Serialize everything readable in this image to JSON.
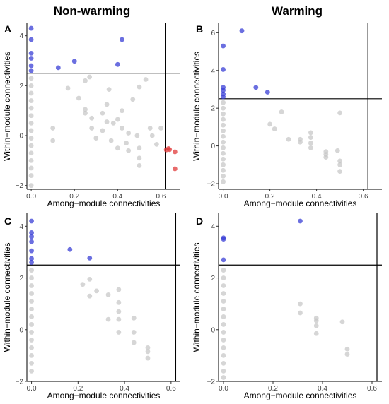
{
  "column_titles": [
    "Non-warming",
    "Warming"
  ],
  "colors": {
    "hub": "#3a3fd6",
    "connector": "#e03a3a",
    "other": "#c4c4c4"
  },
  "chart_data": [
    {
      "panel": "A",
      "type": "scatter",
      "xlabel": "Among−module connectivities",
      "ylabel": "Within−module connectivities",
      "xlim": [
        -0.02,
        0.69
      ],
      "ylim": [
        -2.15,
        4.5
      ],
      "xticks": [
        "0.0",
        "0.2",
        "0.4",
        "0.6"
      ],
      "xtick_values": [
        0,
        0.2,
        0.4,
        0.6
      ],
      "yticks": [
        "−2",
        "0",
        "2",
        "4"
      ],
      "ytick_values": [
        -2,
        0,
        2,
        4
      ],
      "hline": 2.5,
      "vline": 0.62,
      "points": [
        {
          "x": 0,
          "y": 4.3,
          "g": "hub"
        },
        {
          "x": 0,
          "y": 3.85,
          "g": "hub"
        },
        {
          "x": 0,
          "y": 3.3,
          "g": "hub"
        },
        {
          "x": 0,
          "y": 3.1,
          "g": "hub"
        },
        {
          "x": 0,
          "y": 2.8,
          "g": "hub"
        },
        {
          "x": 0,
          "y": 2.6,
          "g": "hub"
        },
        {
          "x": 0.125,
          "y": 2.72,
          "g": "hub"
        },
        {
          "x": 0.2,
          "y": 2.98,
          "g": "hub"
        },
        {
          "x": 0.4,
          "y": 2.85,
          "g": "hub"
        },
        {
          "x": 0.42,
          "y": 3.85,
          "g": "hub"
        },
        {
          "x": 0.625,
          "y": -0.57,
          "g": "connector"
        },
        {
          "x": 0.635,
          "y": -0.52,
          "g": "connector"
        },
        {
          "x": 0.64,
          "y": -0.56,
          "g": "connector"
        },
        {
          "x": 0.665,
          "y": -0.65,
          "g": "connector"
        },
        {
          "x": 0.665,
          "y": -1.33,
          "g": "connector"
        },
        {
          "x": 0,
          "y": 2.3,
          "g": "other"
        },
        {
          "x": 0,
          "y": 2.0,
          "g": "other"
        },
        {
          "x": 0,
          "y": 1.7,
          "g": "other"
        },
        {
          "x": 0,
          "y": 1.4,
          "g": "other"
        },
        {
          "x": 0,
          "y": 1.1,
          "g": "other"
        },
        {
          "x": 0,
          "y": 0.8,
          "g": "other"
        },
        {
          "x": 0,
          "y": 0.5,
          "g": "other"
        },
        {
          "x": 0,
          "y": 0.2,
          "g": "other"
        },
        {
          "x": 0,
          "y": -0.1,
          "g": "other"
        },
        {
          "x": 0,
          "y": -0.4,
          "g": "other"
        },
        {
          "x": 0,
          "y": -0.7,
          "g": "other"
        },
        {
          "x": 0,
          "y": -1.0,
          "g": "other"
        },
        {
          "x": 0,
          "y": -1.3,
          "g": "other"
        },
        {
          "x": 0,
          "y": -1.6,
          "g": "other"
        },
        {
          "x": 0,
          "y": -2.0,
          "g": "other"
        },
        {
          "x": 0.1,
          "y": 0.3,
          "g": "other"
        },
        {
          "x": 0.1,
          "y": -0.2,
          "g": "other"
        },
        {
          "x": 0.17,
          "y": 1.9,
          "g": "other"
        },
        {
          "x": 0.22,
          "y": 1.5,
          "g": "other"
        },
        {
          "x": 0.25,
          "y": 2.2,
          "g": "other"
        },
        {
          "x": 0.27,
          "y": 2.35,
          "g": "other"
        },
        {
          "x": 0.25,
          "y": 1.05,
          "g": "other"
        },
        {
          "x": 0.25,
          "y": 0.9,
          "g": "other"
        },
        {
          "x": 0.28,
          "y": 0.3,
          "g": "other"
        },
        {
          "x": 0.28,
          "y": 0.7,
          "g": "other"
        },
        {
          "x": 0.33,
          "y": 0.9,
          "g": "other"
        },
        {
          "x": 0.33,
          "y": 0.2,
          "g": "other"
        },
        {
          "x": 0.35,
          "y": 1.25,
          "g": "other"
        },
        {
          "x": 0.35,
          "y": 0.55,
          "g": "other"
        },
        {
          "x": 0.36,
          "y": 1.85,
          "g": "other"
        },
        {
          "x": 0.37,
          "y": -0.2,
          "g": "other"
        },
        {
          "x": 0.38,
          "y": 0.5,
          "g": "other"
        },
        {
          "x": 0.4,
          "y": 0.65,
          "g": "other"
        },
        {
          "x": 0.42,
          "y": 1.0,
          "g": "other"
        },
        {
          "x": 0.42,
          "y": 0.3,
          "g": "other"
        },
        {
          "x": 0.44,
          "y": -0.3,
          "g": "other"
        },
        {
          "x": 0.45,
          "y": -0.6,
          "g": "other"
        },
        {
          "x": 0.45,
          "y": 0.1,
          "g": "other"
        },
        {
          "x": 0.47,
          "y": 1.45,
          "g": "other"
        },
        {
          "x": 0.49,
          "y": 0.0,
          "g": "other"
        },
        {
          "x": 0.5,
          "y": -0.5,
          "g": "other"
        },
        {
          "x": 0.5,
          "y": -1.2,
          "g": "other"
        },
        {
          "x": 0.5,
          "y": -0.9,
          "g": "other"
        },
        {
          "x": 0.5,
          "y": 1.95,
          "g": "other"
        },
        {
          "x": 0.53,
          "y": 2.25,
          "g": "other"
        },
        {
          "x": 0.55,
          "y": 0.3,
          "g": "other"
        },
        {
          "x": 0.56,
          "y": 0.0,
          "g": "other"
        },
        {
          "x": 0.58,
          "y": -0.35,
          "g": "other"
        },
        {
          "x": 0.6,
          "y": 0.3,
          "g": "other"
        },
        {
          "x": 0.3,
          "y": -0.1,
          "g": "other"
        },
        {
          "x": 0.4,
          "y": -0.5,
          "g": "other"
        }
      ]
    },
    {
      "panel": "B",
      "type": "scatter",
      "xlabel": "Among−module connectivities",
      "ylabel": "Within−module connectivities",
      "xlim": [
        -0.02,
        0.68
      ],
      "ylim": [
        -2.3,
        6.5
      ],
      "xticks": [
        "0.0",
        "0.2",
        "0.4",
        "0.6"
      ],
      "xtick_values": [
        0,
        0.2,
        0.4,
        0.6
      ],
      "yticks": [
        "−2",
        "0",
        "2",
        "4",
        "6"
      ],
      "ytick_values": [
        -2,
        0,
        2,
        4,
        6
      ],
      "hline": 2.5,
      "vline": null,
      "points": [
        {
          "x": 0,
          "y": 5.3,
          "g": "hub"
        },
        {
          "x": 0,
          "y": 4.05,
          "g": "hub"
        },
        {
          "x": 0,
          "y": 3.1,
          "g": "hub"
        },
        {
          "x": 0,
          "y": 2.95,
          "g": "hub"
        },
        {
          "x": 0,
          "y": 2.75,
          "g": "hub"
        },
        {
          "x": 0,
          "y": 2.6,
          "g": "hub"
        },
        {
          "x": 0.08,
          "y": 6.1,
          "g": "hub"
        },
        {
          "x": 0.14,
          "y": 3.1,
          "g": "hub"
        },
        {
          "x": 0.19,
          "y": 2.85,
          "g": "hub"
        },
        {
          "x": 0,
          "y": 2.3,
          "g": "other"
        },
        {
          "x": 0,
          "y": 2.0,
          "g": "other"
        },
        {
          "x": 0,
          "y": 1.7,
          "g": "other"
        },
        {
          "x": 0,
          "y": 1.4,
          "g": "other"
        },
        {
          "x": 0,
          "y": 1.1,
          "g": "other"
        },
        {
          "x": 0,
          "y": 0.8,
          "g": "other"
        },
        {
          "x": 0,
          "y": 0.5,
          "g": "other"
        },
        {
          "x": 0,
          "y": 0.2,
          "g": "other"
        },
        {
          "x": 0,
          "y": -0.1,
          "g": "other"
        },
        {
          "x": 0,
          "y": -0.4,
          "g": "other"
        },
        {
          "x": 0,
          "y": -0.7,
          "g": "other"
        },
        {
          "x": 0,
          "y": -1.0,
          "g": "other"
        },
        {
          "x": 0,
          "y": -1.3,
          "g": "other"
        },
        {
          "x": 0,
          "y": -1.6,
          "g": "other"
        },
        {
          "x": 0,
          "y": -1.9,
          "g": "other"
        },
        {
          "x": 0.2,
          "y": 1.15,
          "g": "other"
        },
        {
          "x": 0.22,
          "y": 0.9,
          "g": "other"
        },
        {
          "x": 0.25,
          "y": 1.8,
          "g": "other"
        },
        {
          "x": 0.28,
          "y": 0.35,
          "g": "other"
        },
        {
          "x": 0.33,
          "y": 0.35,
          "g": "other"
        },
        {
          "x": 0.33,
          "y": 0.2,
          "g": "other"
        },
        {
          "x": 0.375,
          "y": 0.7,
          "g": "other"
        },
        {
          "x": 0.375,
          "y": 0.45,
          "g": "other"
        },
        {
          "x": 0.375,
          "y": 0.15,
          "g": "other"
        },
        {
          "x": 0.375,
          "y": -0.1,
          "g": "other"
        },
        {
          "x": 0.44,
          "y": -0.3,
          "g": "other"
        },
        {
          "x": 0.44,
          "y": -0.45,
          "g": "other"
        },
        {
          "x": 0.44,
          "y": -0.6,
          "g": "other"
        },
        {
          "x": 0.49,
          "y": -0.25,
          "g": "other"
        },
        {
          "x": 0.5,
          "y": -0.8,
          "g": "other"
        },
        {
          "x": 0.5,
          "y": -1.0,
          "g": "other"
        },
        {
          "x": 0.5,
          "y": -1.35,
          "g": "other"
        },
        {
          "x": 0.5,
          "y": 1.75,
          "g": "other"
        }
      ]
    },
    {
      "panel": "C",
      "type": "scatter",
      "xlabel": "Among−module connectivities",
      "ylabel": "Within−module connectivities",
      "xlim": [
        -0.02,
        0.64
      ],
      "ylim": [
        -2.0,
        4.5
      ],
      "xticks": [
        "0.0",
        "0.2",
        "0.4",
        "0.6"
      ],
      "xtick_values": [
        0,
        0.2,
        0.4,
        0.6
      ],
      "yticks": [
        "−2",
        "0",
        "2",
        "4"
      ],
      "ytick_values": [
        -2,
        0,
        2,
        4
      ],
      "hline": 2.5,
      "vline": null,
      "points": [
        {
          "x": 0,
          "y": 4.2,
          "g": "hub"
        },
        {
          "x": 0,
          "y": 3.75,
          "g": "hub"
        },
        {
          "x": 0,
          "y": 3.6,
          "g": "hub"
        },
        {
          "x": 0,
          "y": 3.4,
          "g": "hub"
        },
        {
          "x": 0,
          "y": 3.05,
          "g": "hub"
        },
        {
          "x": 0,
          "y": 2.75,
          "g": "hub"
        },
        {
          "x": 0,
          "y": 2.6,
          "g": "hub"
        },
        {
          "x": 0.165,
          "y": 3.1,
          "g": "hub"
        },
        {
          "x": 0.25,
          "y": 2.77,
          "g": "hub"
        },
        {
          "x": 0,
          "y": 2.3,
          "g": "other"
        },
        {
          "x": 0,
          "y": 2.0,
          "g": "other"
        },
        {
          "x": 0,
          "y": 1.7,
          "g": "other"
        },
        {
          "x": 0,
          "y": 1.4,
          "g": "other"
        },
        {
          "x": 0,
          "y": 1.1,
          "g": "other"
        },
        {
          "x": 0,
          "y": 0.8,
          "g": "other"
        },
        {
          "x": 0,
          "y": 0.5,
          "g": "other"
        },
        {
          "x": 0,
          "y": 0.2,
          "g": "other"
        },
        {
          "x": 0,
          "y": -0.1,
          "g": "other"
        },
        {
          "x": 0,
          "y": -0.4,
          "g": "other"
        },
        {
          "x": 0,
          "y": -0.7,
          "g": "other"
        },
        {
          "x": 0,
          "y": -1.0,
          "g": "other"
        },
        {
          "x": 0,
          "y": -1.3,
          "g": "other"
        },
        {
          "x": 0,
          "y": -1.6,
          "g": "other"
        },
        {
          "x": 0.22,
          "y": 1.75,
          "g": "other"
        },
        {
          "x": 0.25,
          "y": 1.95,
          "g": "other"
        },
        {
          "x": 0.25,
          "y": 1.3,
          "g": "other"
        },
        {
          "x": 0.28,
          "y": 1.5,
          "g": "other"
        },
        {
          "x": 0.33,
          "y": 1.35,
          "g": "other"
        },
        {
          "x": 0.33,
          "y": 0.4,
          "g": "other"
        },
        {
          "x": 0.375,
          "y": 1.55,
          "g": "other"
        },
        {
          "x": 0.375,
          "y": 1.05,
          "g": "other"
        },
        {
          "x": 0.375,
          "y": 0.7,
          "g": "other"
        },
        {
          "x": 0.375,
          "y": 0.4,
          "g": "other"
        },
        {
          "x": 0.375,
          "y": -0.1,
          "g": "other"
        },
        {
          "x": 0.44,
          "y": 0.45,
          "g": "other"
        },
        {
          "x": 0.44,
          "y": -0.1,
          "g": "other"
        },
        {
          "x": 0.44,
          "y": -0.5,
          "g": "other"
        },
        {
          "x": 0.5,
          "y": -0.7,
          "g": "other"
        },
        {
          "x": 0.5,
          "y": -0.85,
          "g": "other"
        },
        {
          "x": 0.5,
          "y": -1.1,
          "g": "other"
        }
      ]
    },
    {
      "panel": "D",
      "type": "scatter",
      "xlabel": "Among−module connectivities",
      "ylabel": "Within−module connectivities",
      "xlim": [
        -0.02,
        0.64
      ],
      "ylim": [
        -2.0,
        4.5
      ],
      "xticks": [
        "0.0",
        "0.2",
        "0.4",
        "0.6"
      ],
      "xtick_values": [
        0,
        0.2,
        0.4,
        0.6
      ],
      "yticks": [
        "−2",
        "0",
        "2",
        "4"
      ],
      "ytick_values": [
        -2,
        0,
        2,
        4
      ],
      "hline": 2.5,
      "vline": null,
      "points": [
        {
          "x": 0,
          "y": 3.55,
          "g": "hub"
        },
        {
          "x": 0,
          "y": 3.5,
          "g": "hub"
        },
        {
          "x": 0,
          "y": 2.7,
          "g": "hub"
        },
        {
          "x": 0.31,
          "y": 4.2,
          "g": "hub"
        },
        {
          "x": 0,
          "y": 2.3,
          "g": "other"
        },
        {
          "x": 0,
          "y": 2.0,
          "g": "other"
        },
        {
          "x": 0,
          "y": 1.7,
          "g": "other"
        },
        {
          "x": 0,
          "y": 1.4,
          "g": "other"
        },
        {
          "x": 0,
          "y": 1.1,
          "g": "other"
        },
        {
          "x": 0,
          "y": 0.8,
          "g": "other"
        },
        {
          "x": 0,
          "y": 0.5,
          "g": "other"
        },
        {
          "x": 0,
          "y": 0.2,
          "g": "other"
        },
        {
          "x": 0,
          "y": -0.1,
          "g": "other"
        },
        {
          "x": 0,
          "y": -0.4,
          "g": "other"
        },
        {
          "x": 0,
          "y": -0.7,
          "g": "other"
        },
        {
          "x": 0,
          "y": -1.0,
          "g": "other"
        },
        {
          "x": 0,
          "y": -1.3,
          "g": "other"
        },
        {
          "x": 0,
          "y": -1.6,
          "g": "other"
        },
        {
          "x": 0,
          "y": -1.85,
          "g": "other"
        },
        {
          "x": 0.31,
          "y": 1.0,
          "g": "other"
        },
        {
          "x": 0.31,
          "y": 0.65,
          "g": "other"
        },
        {
          "x": 0.375,
          "y": 0.45,
          "g": "other"
        },
        {
          "x": 0.375,
          "y": 0.35,
          "g": "other"
        },
        {
          "x": 0.375,
          "y": 0.15,
          "g": "other"
        },
        {
          "x": 0.375,
          "y": -0.15,
          "g": "other"
        },
        {
          "x": 0.48,
          "y": 0.3,
          "g": "other"
        },
        {
          "x": 0.5,
          "y": -0.75,
          "g": "other"
        },
        {
          "x": 0.5,
          "y": -0.95,
          "g": "other"
        }
      ]
    }
  ]
}
